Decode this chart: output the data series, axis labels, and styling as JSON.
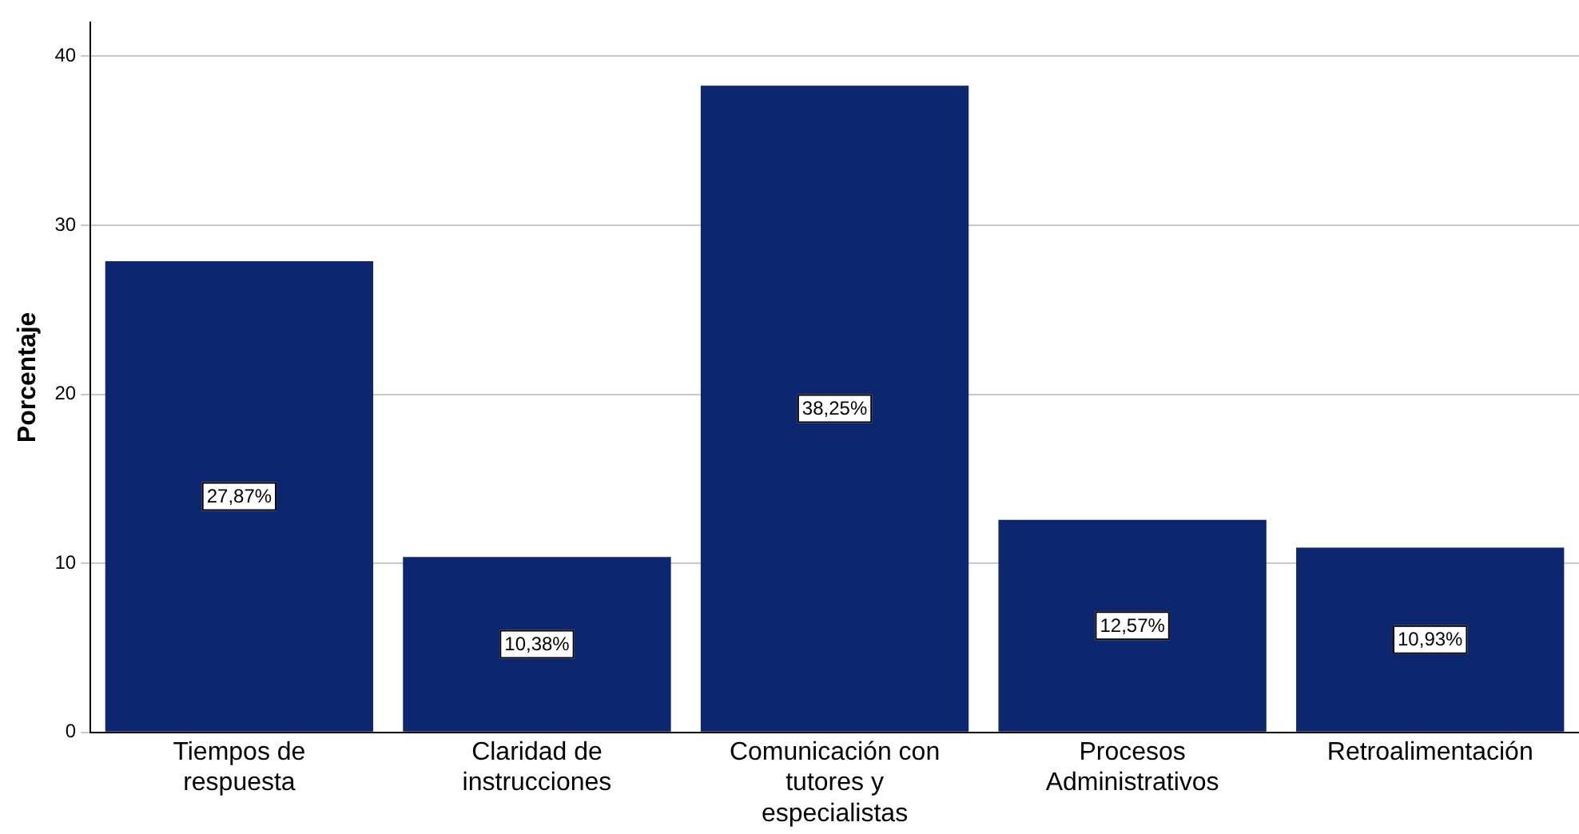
{
  "chart_data": {
    "type": "bar",
    "ylabel": "Porcentaje",
    "categories": [
      "Tiempos de respuesta",
      "Claridad de instrucciones",
      "Comunicación con tutores y especialistas",
      "Procesos Administrativos",
      "Retroalimentación"
    ],
    "values": [
      27.87,
      10.38,
      38.25,
      12.57,
      10.93
    ],
    "value_labels": [
      "27,87%",
      "10,38%",
      "38,25%",
      "12,57%",
      "10,93%"
    ],
    "color": "#0c2670",
    "ylim": [
      0,
      42
    ],
    "yticks": [
      0,
      10,
      20,
      30,
      40
    ],
    "grid": "y",
    "legend": false
  }
}
